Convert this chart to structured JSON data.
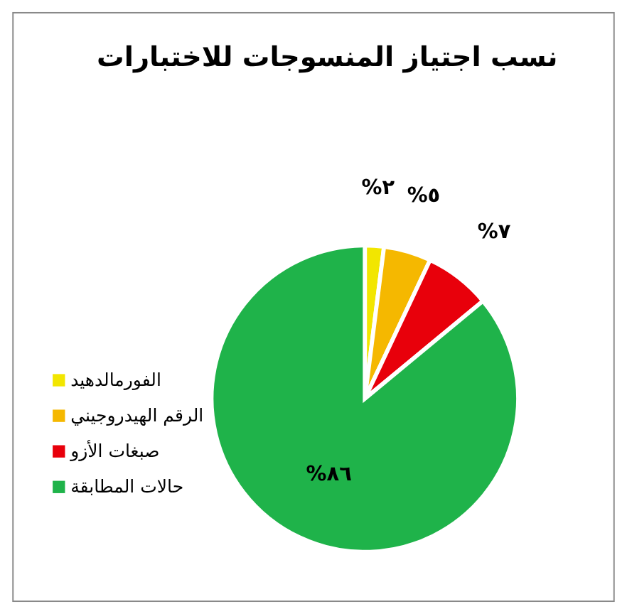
{
  "chart_data": {
    "type": "pie",
    "title": "نسب اجتياز المنسوجات للاختبارات",
    "categories": [
      "الفورمالدهيد",
      "الرقم الهيدروجيني",
      "صبغات الأزو",
      "حالات المطابقة"
    ],
    "values": [
      2,
      5,
      7,
      86
    ],
    "colors": [
      "#f2e600",
      "#f5b800",
      "#e8000b",
      "#1fb34a"
    ],
    "value_labels": [
      "%٢",
      "%٥",
      "%٧",
      "%٨٦"
    ],
    "legend": "left"
  }
}
